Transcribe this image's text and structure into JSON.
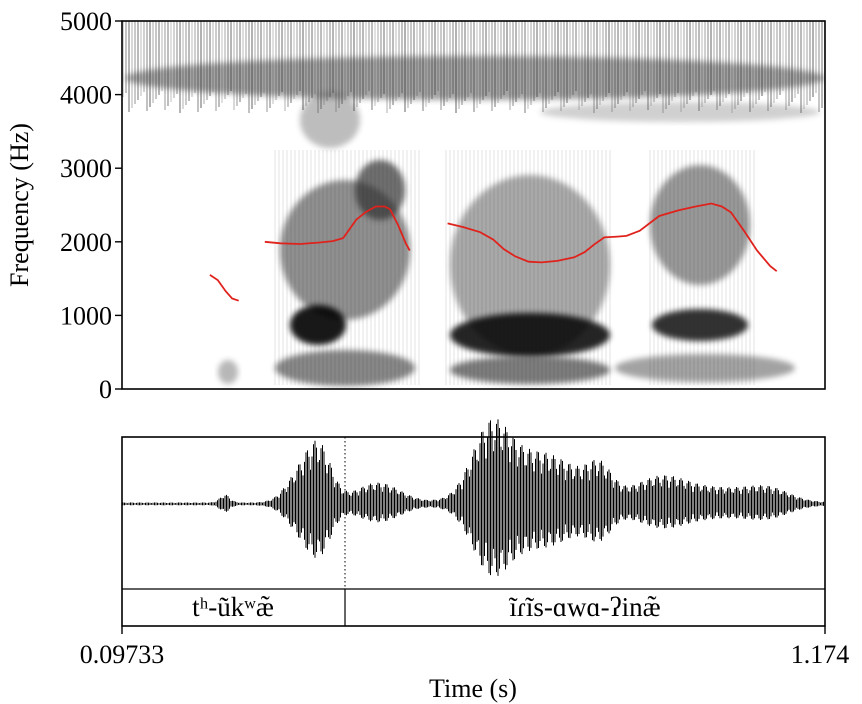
{
  "chart_data": [
    {
      "type": "spectrogram",
      "ylabel": "Frequency (Hz)",
      "ylim": [
        0,
        5000
      ],
      "yticks": [
        "0",
        "1000",
        "2000",
        "3000",
        "4000",
        "5000"
      ],
      "xlim": [
        0.09733,
        1.174
      ],
      "overlay_color": "#e0221c",
      "series": [
        {
          "x": [
            0.232,
            0.244,
            0.256,
            0.266,
            0.276
          ],
          "y": [
            1550,
            1480,
            1330,
            1230,
            1200
          ]
        },
        {
          "x": [
            0.316,
            0.34,
            0.37,
            0.4,
            0.42,
            0.436,
            0.444,
            0.456,
            0.47,
            0.486,
            0.5,
            0.508,
            0.52,
            0.532,
            0.538
          ],
          "y": [
            2000,
            1980,
            1970,
            1990,
            2010,
            2050,
            2150,
            2300,
            2400,
            2480,
            2480,
            2440,
            2230,
            1980,
            1880
          ]
        },
        {
          "x": [
            0.596,
            0.62,
            0.646,
            0.666,
            0.682,
            0.7,
            0.72,
            0.74,
            0.764,
            0.79,
            0.806,
            0.82,
            0.836,
            0.856,
            0.87,
            0.89,
            0.92,
            0.95,
            0.976,
            1.0,
            1.016,
            1.03,
            1.05,
            1.07,
            1.09,
            1.1
          ],
          "y": [
            2250,
            2200,
            2130,
            2030,
            1900,
            1800,
            1730,
            1720,
            1740,
            1790,
            1860,
            1960,
            2060,
            2070,
            2080,
            2150,
            2350,
            2430,
            2480,
            2520,
            2480,
            2400,
            2150,
            1880,
            1670,
            1600
          ]
        }
      ]
    },
    {
      "type": "waveform",
      "xlabel": "Time (s)",
      "xlim": [
        0.09733,
        1.174
      ],
      "xtick_left": "0.09733",
      "xtick_right": "1.174",
      "boundary_time": 0.44,
      "segments": [
        {
          "label": "tʰ-ũkʷæ̃",
          "start": 0.09733,
          "end": 0.44
        },
        {
          "label": "ĩɾĩs-ɑwɑ-ʔinæ̃",
          "start": 0.44,
          "end": 1.174
        }
      ]
    }
  ]
}
